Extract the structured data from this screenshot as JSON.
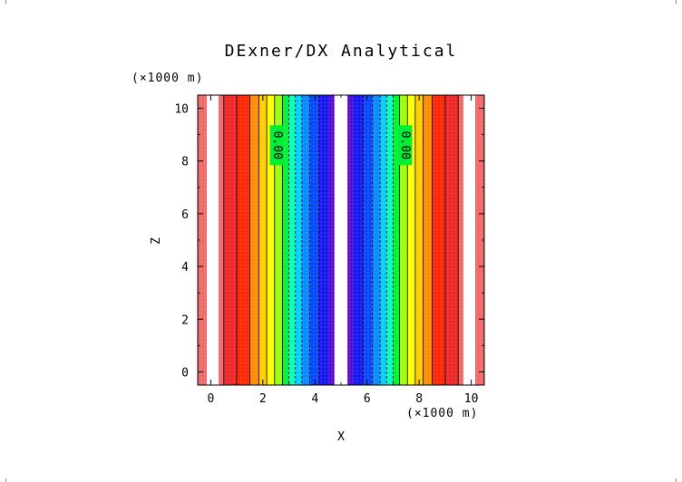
{
  "chart_data": {
    "type": "heatmap",
    "title": "DExner/DX Analytical",
    "xlabel": "X",
    "ylabel": "Z",
    "x_unit": "(×1000 m)",
    "y_unit": "(×1000 m)",
    "xlim": [
      -0.5,
      10.5
    ],
    "ylim": [
      -0.5,
      10.5
    ],
    "xticks": [
      0,
      2,
      4,
      6,
      8,
      10
    ],
    "yticks": [
      0,
      2,
      4,
      6,
      8,
      10
    ],
    "contour_labels": [
      {
        "text": "0.00",
        "x": 2.55,
        "z": 8.6
      },
      {
        "text": "0.00",
        "x": 7.45,
        "z": 8.6
      }
    ],
    "bands": [
      {
        "x0": -0.5,
        "x1": -0.15,
        "color": "#ee6666"
      },
      {
        "x0": -0.15,
        "x1": 0.3,
        "color": "#ffffff"
      },
      {
        "x0": 0.3,
        "x1": 0.5,
        "color": "#ee6666"
      },
      {
        "x0": 0.5,
        "x1": 1.0,
        "color": "#ee2222"
      },
      {
        "x0": 1.0,
        "x1": 1.5,
        "color": "#ff2200"
      },
      {
        "x0": 1.5,
        "x1": 1.85,
        "color": "#ff8800"
      },
      {
        "x0": 1.85,
        "x1": 2.15,
        "color": "#ffcc00"
      },
      {
        "x0": 2.15,
        "x1": 2.45,
        "color": "#ffff00"
      },
      {
        "x0": 2.45,
        "x1": 2.75,
        "color": "#99ff00"
      },
      {
        "x0": 2.75,
        "x1": 3.0,
        "color": "#00ee33"
      },
      {
        "x0": 3.0,
        "x1": 3.25,
        "color": "#00ffbb"
      },
      {
        "x0": 3.25,
        "x1": 3.5,
        "color": "#00ccff"
      },
      {
        "x0": 3.5,
        "x1": 3.8,
        "color": "#0088ff"
      },
      {
        "x0": 3.8,
        "x1": 4.15,
        "color": "#0044ff"
      },
      {
        "x0": 4.15,
        "x1": 4.55,
        "color": "#1111ee"
      },
      {
        "x0": 4.55,
        "x1": 4.75,
        "color": "#5500cc"
      },
      {
        "x0": 4.75,
        "x1": 5.25,
        "color": "#ffffff"
      },
      {
        "x0": 5.25,
        "x1": 5.45,
        "color": "#5500cc"
      },
      {
        "x0": 5.45,
        "x1": 5.85,
        "color": "#1111ee"
      },
      {
        "x0": 5.85,
        "x1": 6.2,
        "color": "#0044ff"
      },
      {
        "x0": 6.2,
        "x1": 6.5,
        "color": "#0088ff"
      },
      {
        "x0": 6.5,
        "x1": 6.75,
        "color": "#00ccff"
      },
      {
        "x0": 6.75,
        "x1": 7.0,
        "color": "#00ffbb"
      },
      {
        "x0": 7.0,
        "x1": 7.25,
        "color": "#00ee33"
      },
      {
        "x0": 7.25,
        "x1": 7.55,
        "color": "#99ff00"
      },
      {
        "x0": 7.55,
        "x1": 7.85,
        "color": "#ffff00"
      },
      {
        "x0": 7.85,
        "x1": 8.15,
        "color": "#ffcc00"
      },
      {
        "x0": 8.15,
        "x1": 8.5,
        "color": "#ff8800"
      },
      {
        "x0": 8.5,
        "x1": 9.0,
        "color": "#ff2200"
      },
      {
        "x0": 9.0,
        "x1": 9.5,
        "color": "#ee2222"
      },
      {
        "x0": 9.5,
        "x1": 9.7,
        "color": "#ee6666"
      },
      {
        "x0": 9.7,
        "x1": 10.15,
        "color": "#ffffff"
      },
      {
        "x0": 10.15,
        "x1": 10.5,
        "color": "#ee6666"
      }
    ],
    "contours": [
      {
        "x": 0.5,
        "style": "solid"
      },
      {
        "x": 1.0,
        "style": "solid"
      },
      {
        "x": 1.5,
        "style": "solid"
      },
      {
        "x": 1.85,
        "style": "solid"
      },
      {
        "x": 2.15,
        "style": "solid"
      },
      {
        "x": 2.45,
        "style": "solid"
      },
      {
        "x": 2.75,
        "style": "solid"
      },
      {
        "x": 3.0,
        "style": "dashed"
      },
      {
        "x": 3.25,
        "style": "dashed"
      },
      {
        "x": 3.5,
        "style": "dashed"
      },
      {
        "x": 3.8,
        "style": "dashed"
      },
      {
        "x": 4.15,
        "style": "dashed"
      },
      {
        "x": 5.85,
        "style": "dashed"
      },
      {
        "x": 6.2,
        "style": "dashed"
      },
      {
        "x": 6.5,
        "style": "dashed"
      },
      {
        "x": 6.75,
        "style": "dashed"
      },
      {
        "x": 7.0,
        "style": "dashed"
      },
      {
        "x": 7.25,
        "style": "solid"
      },
      {
        "x": 7.55,
        "style": "solid"
      },
      {
        "x": 7.85,
        "style": "solid"
      },
      {
        "x": 8.15,
        "style": "solid"
      },
      {
        "x": 8.5,
        "style": "solid"
      },
      {
        "x": 9.0,
        "style": "solid"
      },
      {
        "x": 9.5,
        "style": "solid"
      }
    ],
    "grid": false,
    "colors": {
      "axis": "#000000",
      "background": "#ffffff"
    }
  }
}
